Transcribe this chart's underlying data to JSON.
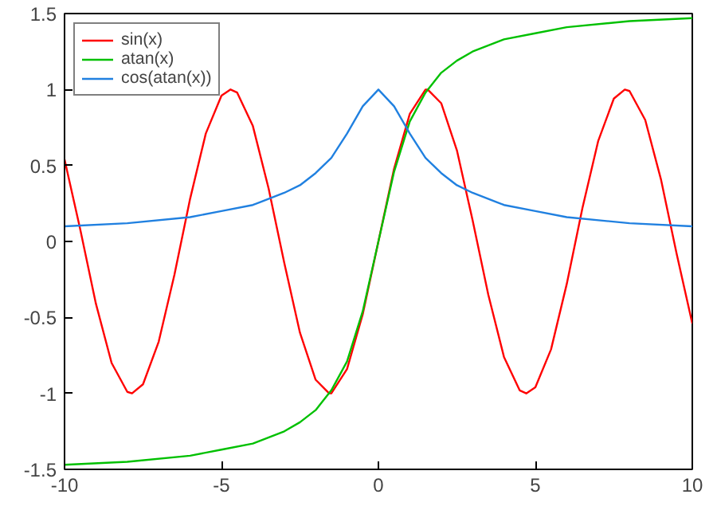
{
  "chart_data": {
    "type": "line",
    "xlim": [
      -10,
      10
    ],
    "ylim": [
      -1.5,
      1.5
    ],
    "xticks": [
      -10,
      -5,
      0,
      5,
      10
    ],
    "yticks": [
      -1.5,
      -1,
      -0.5,
      0,
      0.5,
      1,
      1.5
    ],
    "grid": false,
    "legend": "top left",
    "marker": "none",
    "line_style": "solid",
    "series": [
      {
        "name": "sin(x)",
        "color": "#ff0000",
        "x": [
          -10,
          -9.5,
          -9,
          -8.5,
          -8,
          -7.85,
          -7.5,
          -7,
          -6.5,
          -6,
          -5.5,
          -5,
          -4.71,
          -4.5,
          -4,
          -3.5,
          -3,
          -2.5,
          -2,
          -1.57,
          -1.5,
          -1,
          -0.5,
          0,
          0.5,
          1,
          1.5,
          1.57,
          2,
          2.5,
          3,
          3.5,
          4,
          4.5,
          4.71,
          5,
          5.5,
          6,
          6.5,
          7,
          7.5,
          7.85,
          8,
          8.5,
          9,
          9.5,
          10
        ],
        "values": [
          0.54,
          0.08,
          -0.41,
          -0.8,
          -0.99,
          -1,
          -0.94,
          -0.66,
          -0.22,
          0.28,
          0.71,
          0.96,
          1,
          0.98,
          0.76,
          0.35,
          -0.14,
          -0.6,
          -0.91,
          -1,
          -1,
          -0.84,
          -0.48,
          0,
          0.48,
          0.84,
          1,
          1,
          0.91,
          0.6,
          0.14,
          -0.35,
          -0.76,
          -0.98,
          -1,
          -0.96,
          -0.71,
          -0.28,
          0.22,
          0.66,
          0.94,
          1,
          0.99,
          0.8,
          0.41,
          -0.08,
          -0.54
        ]
      },
      {
        "name": "atan(x)",
        "color": "#00c000",
        "x": [
          -10,
          -8,
          -6,
          -5,
          -4,
          -3,
          -2.5,
          -2,
          -1.5,
          -1,
          -0.5,
          0,
          0.5,
          1,
          1.5,
          2,
          2.5,
          3,
          4,
          5,
          6,
          8,
          10
        ],
        "values": [
          -1.47,
          -1.45,
          -1.41,
          -1.37,
          -1.33,
          -1.25,
          -1.19,
          -1.11,
          -0.98,
          -0.79,
          -0.46,
          0,
          0.46,
          0.79,
          0.98,
          1.11,
          1.19,
          1.25,
          1.33,
          1.37,
          1.41,
          1.45,
          1.47
        ]
      },
      {
        "name": "cos(atan(x))",
        "color": "#2080e0",
        "x": [
          -10,
          -8,
          -6,
          -5,
          -4,
          -3,
          -2.5,
          -2,
          -1.5,
          -1,
          -0.5,
          0,
          0.5,
          1,
          1.5,
          2,
          2.5,
          3,
          4,
          5,
          6,
          8,
          10
        ],
        "values": [
          0.1,
          0.12,
          0.16,
          0.2,
          0.24,
          0.32,
          0.37,
          0.45,
          0.55,
          0.71,
          0.89,
          1,
          0.89,
          0.71,
          0.55,
          0.45,
          0.37,
          0.32,
          0.24,
          0.2,
          0.16,
          0.12,
          0.1
        ]
      }
    ]
  }
}
